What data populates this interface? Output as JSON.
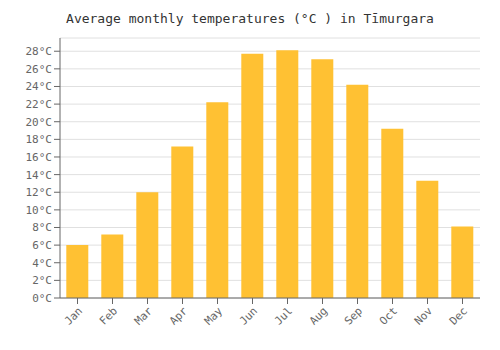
{
  "chart_data": {
    "type": "bar",
    "title": "Average monthly temperatures (°C ) in Tīmurgara",
    "categories": [
      "Jan",
      "Feb",
      "Mar",
      "Apr",
      "May",
      "Jun",
      "Jul",
      "Aug",
      "Sep",
      "Oct",
      "Nov",
      "Dec"
    ],
    "values": [
      6,
      7.2,
      12,
      17.2,
      22.2,
      27.7,
      28.1,
      27.1,
      24.2,
      19.2,
      13.3,
      8.1
    ],
    "color": "#FFC133",
    "ylim": [
      0,
      29.5
    ],
    "yticks": [
      {
        "value": 0,
        "label": "0°C"
      },
      {
        "value": 2,
        "label": "2°C"
      },
      {
        "value": 4,
        "label": "4°C"
      },
      {
        "value": 6,
        "label": "6°C"
      },
      {
        "value": 8,
        "label": "8°C"
      },
      {
        "value": 10,
        "label": "10°C"
      },
      {
        "value": 12,
        "label": "12°C"
      },
      {
        "value": 14,
        "label": "14°C"
      },
      {
        "value": 16,
        "label": "16°C"
      },
      {
        "value": 18,
        "label": "18°C"
      },
      {
        "value": 20,
        "label": "20°C"
      },
      {
        "value": 22,
        "label": "22°C"
      },
      {
        "value": 24,
        "label": "24°C"
      },
      {
        "value": 26,
        "label": "26°C"
      },
      {
        "value": 28,
        "label": "28°C"
      }
    ],
    "grid": true
  }
}
